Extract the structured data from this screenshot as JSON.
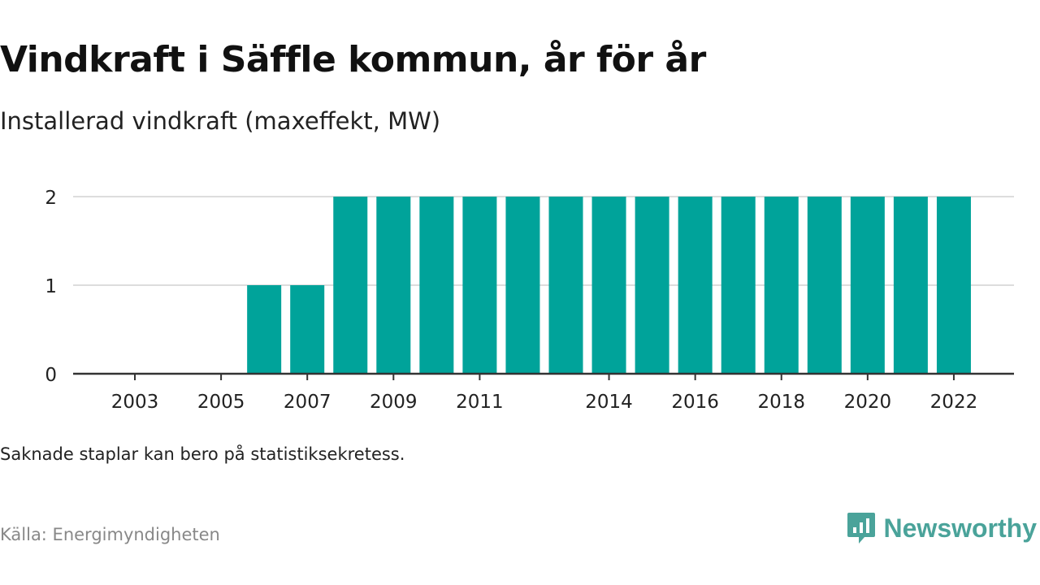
{
  "title": "Vindkraft i Säffle kommun, år för år",
  "subtitle": "Installerad vindkraft (maxeffekt, MW)",
  "note": "Saknade staplar kan bero på statistiksekretess.",
  "source": "Källa: Energimyndigheten",
  "brand": {
    "name": "Newsworthy",
    "icon": "newsworthy-logo-icon",
    "color": "#4aa39a"
  },
  "chart_data": {
    "type": "bar",
    "categories": [
      "2003",
      "2004",
      "2005",
      "2006",
      "2007",
      "2008",
      "2009",
      "2010",
      "2011",
      "2012",
      "2013",
      "2014",
      "2015",
      "2016",
      "2017",
      "2018",
      "2019",
      "2020",
      "2021",
      "2022"
    ],
    "values": [
      0,
      0,
      0,
      1,
      1,
      2,
      2,
      2,
      2,
      2,
      2,
      2,
      2,
      2,
      2,
      2,
      2,
      2,
      2,
      2
    ],
    "x_tick_labels": [
      "2003",
      "2005",
      "2007",
      "2009",
      "2011",
      "2014",
      "2016",
      "2018",
      "2020",
      "2022"
    ],
    "y_ticks": [
      0,
      1,
      2
    ],
    "ylim": [
      0,
      2
    ],
    "xlabel": "",
    "ylabel": "",
    "bar_color": "#00a39a",
    "grid": true
  }
}
